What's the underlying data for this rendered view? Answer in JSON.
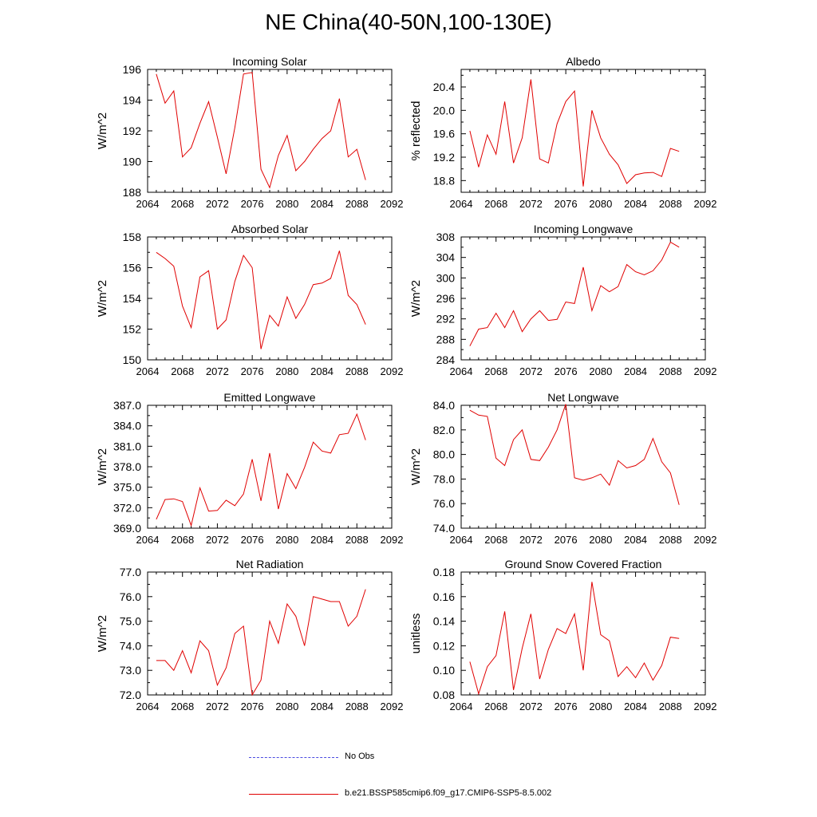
{
  "figure": {
    "title": "NE China(40-50N,100-130E)"
  },
  "legend": {
    "items": [
      {
        "label": "No Obs",
        "style": "dashed",
        "color": "#4a4ae0"
      },
      {
        "label": "b.e21.BSSP585cmip6.f09_g17.CMIP6-SSP5-8.5.002",
        "style": "solid",
        "color": "#e00000"
      }
    ]
  },
  "chart_data": [
    {
      "type": "line",
      "title": "Incoming Solar",
      "ylabel": "W/m^2",
      "xlim": [
        2064,
        2092
      ],
      "ylim": [
        188,
        196
      ],
      "xticks": [
        2064,
        2068,
        2072,
        2076,
        2080,
        2084,
        2088,
        2092
      ],
      "yticks": [
        "188",
        "190",
        "192",
        "194",
        "196"
      ],
      "color": "#e00000",
      "x": [
        2065,
        2066,
        2067,
        2068,
        2069,
        2070,
        2071,
        2072,
        2073,
        2074,
        2075,
        2076,
        2077,
        2078,
        2079,
        2080,
        2081,
        2082,
        2083,
        2084,
        2085,
        2086,
        2087,
        2088,
        2089
      ],
      "values": [
        195.7,
        193.8,
        194.6,
        190.3,
        190.9,
        192.5,
        193.9,
        191.6,
        189.2,
        192.2,
        195.7,
        195.8,
        189.5,
        188.3,
        190.4,
        191.7,
        189.4,
        190.0,
        190.8,
        191.5,
        192.0,
        194.1,
        190.3,
        190.8,
        188.8
      ]
    },
    {
      "type": "line",
      "title": "Albedo",
      "ylabel": "% reflected",
      "xlim": [
        2064,
        2092
      ],
      "ylim": [
        18.6,
        20.7
      ],
      "xticks": [
        2064,
        2068,
        2072,
        2076,
        2080,
        2084,
        2088,
        2092
      ],
      "yticks": [
        "18.8",
        "19.2",
        "19.6",
        "20.0",
        "20.4"
      ],
      "color": "#e00000",
      "x": [
        2065,
        2066,
        2067,
        2068,
        2069,
        2070,
        2071,
        2072,
        2073,
        2074,
        2075,
        2076,
        2077,
        2078,
        2079,
        2080,
        2081,
        2082,
        2083,
        2084,
        2085,
        2086,
        2087,
        2088,
        2089
      ],
      "values": [
        19.65,
        19.03,
        19.58,
        19.25,
        20.15,
        19.1,
        19.53,
        20.53,
        19.17,
        19.1,
        19.77,
        20.15,
        20.33,
        18.7,
        20.0,
        19.53,
        19.25,
        19.07,
        18.75,
        18.9,
        18.93,
        18.94,
        18.87,
        19.35,
        19.3
      ]
    },
    {
      "type": "line",
      "title": "Absorbed Solar",
      "ylabel": "W/m^2",
      "xlim": [
        2064,
        2092
      ],
      "ylim": [
        150,
        158
      ],
      "xticks": [
        2064,
        2068,
        2072,
        2076,
        2080,
        2084,
        2088,
        2092
      ],
      "yticks": [
        "150",
        "152",
        "154",
        "156",
        "158"
      ],
      "color": "#e00000",
      "x": [
        2065,
        2066,
        2067,
        2068,
        2069,
        2070,
        2071,
        2072,
        2073,
        2074,
        2075,
        2076,
        2077,
        2078,
        2079,
        2080,
        2081,
        2082,
        2083,
        2084,
        2085,
        2086,
        2087,
        2088,
        2089
      ],
      "values": [
        157.0,
        156.6,
        156.1,
        153.5,
        152.1,
        155.4,
        155.8,
        152.0,
        152.6,
        155.1,
        156.8,
        156.0,
        150.7,
        152.9,
        152.2,
        154.1,
        152.7,
        153.6,
        154.9,
        155.0,
        155.3,
        157.1,
        154.2,
        153.6,
        152.3
      ]
    },
    {
      "type": "line",
      "title": "Incoming Longwave",
      "ylabel": "W/m^2",
      "xlim": [
        2064,
        2092
      ],
      "ylim": [
        284,
        308
      ],
      "xticks": [
        2064,
        2068,
        2072,
        2076,
        2080,
        2084,
        2088,
        2092
      ],
      "yticks": [
        "284",
        "288",
        "292",
        "296",
        "300",
        "304",
        "308"
      ],
      "color": "#e00000",
      "x": [
        2065,
        2066,
        2067,
        2068,
        2069,
        2070,
        2071,
        2072,
        2073,
        2074,
        2075,
        2076,
        2077,
        2078,
        2079,
        2080,
        2081,
        2082,
        2083,
        2084,
        2085,
        2086,
        2087,
        2088,
        2089
      ],
      "values": [
        286.7,
        290.0,
        290.3,
        293.1,
        290.3,
        293.6,
        289.5,
        292.0,
        293.6,
        291.7,
        291.9,
        295.3,
        295.0,
        302.1,
        293.6,
        298.5,
        297.3,
        298.3,
        302.6,
        301.2,
        300.6,
        301.4,
        303.5,
        307.0,
        306.0
      ]
    },
    {
      "type": "line",
      "title": "Emitted Longwave",
      "ylabel": "W/m^2",
      "xlim": [
        2064,
        2092
      ],
      "ylim": [
        369,
        387
      ],
      "xticks": [
        2064,
        2068,
        2072,
        2076,
        2080,
        2084,
        2088,
        2092
      ],
      "yticks": [
        "369.0",
        "372.0",
        "375.0",
        "378.0",
        "381.0",
        "384.0",
        "387.0"
      ],
      "color": "#e00000",
      "x": [
        2065,
        2066,
        2067,
        2068,
        2069,
        2070,
        2071,
        2072,
        2073,
        2074,
        2075,
        2076,
        2077,
        2078,
        2079,
        2080,
        2081,
        2082,
        2083,
        2084,
        2085,
        2086,
        2087,
        2088,
        2089
      ],
      "values": [
        370.3,
        373.2,
        373.3,
        372.9,
        369.4,
        374.9,
        371.5,
        371.6,
        373.1,
        372.3,
        374.0,
        379.1,
        373.0,
        380.0,
        371.8,
        377.0,
        374.8,
        377.9,
        381.6,
        380.3,
        380.0,
        382.7,
        382.9,
        385.7,
        381.9
      ]
    },
    {
      "type": "line",
      "title": "Net Longwave",
      "ylabel": "W/m^2",
      "xlim": [
        2064,
        2092
      ],
      "ylim": [
        74,
        84
      ],
      "xticks": [
        2064,
        2068,
        2072,
        2076,
        2080,
        2084,
        2088,
        2092
      ],
      "yticks": [
        "74.0",
        "76.0",
        "78.0",
        "80.0",
        "82.0",
        "84.0"
      ],
      "color": "#e00000",
      "x": [
        2065,
        2066,
        2067,
        2068,
        2069,
        2070,
        2071,
        2072,
        2073,
        2074,
        2075,
        2076,
        2077,
        2078,
        2079,
        2080,
        2081,
        2082,
        2083,
        2084,
        2085,
        2086,
        2087,
        2088,
        2089
      ],
      "values": [
        83.6,
        83.2,
        83.1,
        79.7,
        79.1,
        81.2,
        82.0,
        79.6,
        79.5,
        80.6,
        82.0,
        84.1,
        78.1,
        77.9,
        78.1,
        78.4,
        77.5,
        79.5,
        78.9,
        79.1,
        79.6,
        81.3,
        79.4,
        78.5,
        75.9
      ]
    },
    {
      "type": "line",
      "title": "Net Radiation",
      "ylabel": "W/m^2",
      "xlim": [
        2064,
        2092
      ],
      "ylim": [
        72,
        77
      ],
      "xticks": [
        2064,
        2068,
        2072,
        2076,
        2080,
        2084,
        2088,
        2092
      ],
      "yticks": [
        "72.0",
        "73.0",
        "74.0",
        "75.0",
        "76.0",
        "77.0"
      ],
      "color": "#e00000",
      "x": [
        2065,
        2066,
        2067,
        2068,
        2069,
        2070,
        2071,
        2072,
        2073,
        2074,
        2075,
        2076,
        2077,
        2078,
        2079,
        2080,
        2081,
        2082,
        2083,
        2084,
        2085,
        2086,
        2087,
        2088,
        2089
      ],
      "values": [
        73.4,
        73.4,
        73.0,
        73.8,
        72.9,
        74.2,
        73.8,
        72.4,
        73.1,
        74.5,
        74.8,
        72.0,
        72.6,
        75.0,
        74.1,
        75.7,
        75.2,
        74.0,
        76.0,
        75.9,
        75.8,
        75.8,
        74.8,
        75.2,
        76.3
      ]
    },
    {
      "type": "line",
      "title": "Ground Snow Covered Fraction",
      "ylabel": "unitless",
      "xlim": [
        2064,
        2092
      ],
      "ylim": [
        0.08,
        0.18
      ],
      "xticks": [
        2064,
        2068,
        2072,
        2076,
        2080,
        2084,
        2088,
        2092
      ],
      "yticks": [
        "0.08",
        "0.10",
        "0.12",
        "0.14",
        "0.16",
        "0.18"
      ],
      "color": "#e00000",
      "x": [
        2065,
        2066,
        2067,
        2068,
        2069,
        2070,
        2071,
        2072,
        2073,
        2074,
        2075,
        2076,
        2077,
        2078,
        2079,
        2080,
        2081,
        2082,
        2083,
        2084,
        2085,
        2086,
        2087,
        2088,
        2089
      ],
      "values": [
        0.107,
        0.081,
        0.103,
        0.112,
        0.148,
        0.084,
        0.118,
        0.146,
        0.093,
        0.117,
        0.134,
        0.13,
        0.146,
        0.1,
        0.172,
        0.129,
        0.124,
        0.095,
        0.103,
        0.094,
        0.106,
        0.092,
        0.104,
        0.127,
        0.126
      ]
    }
  ]
}
